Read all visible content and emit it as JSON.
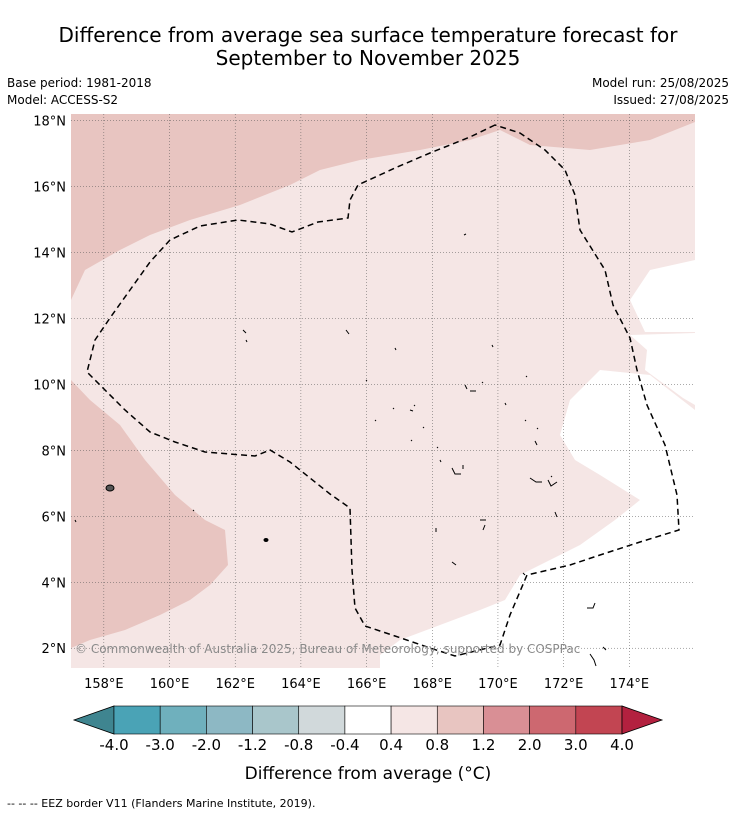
{
  "title_line1": "Difference from average sea surface temperature forecast for",
  "title_line2": "September to November 2025",
  "meta": {
    "base_period": "Base period: 1981-2018",
    "model": "Model: ACCESS-S2",
    "model_run": "Model run: 25/08/2025",
    "issued": "Issued: 27/08/2025"
  },
  "map": {
    "lon_range": [
      157,
      176
    ],
    "lat_range": [
      1.4,
      18.2
    ],
    "lat_ticks": [
      "2°N",
      "4°N",
      "6°N",
      "8°N",
      "10°N",
      "12°N",
      "14°N",
      "16°N",
      "18°N"
    ],
    "lon_ticks": [
      "158°E",
      "160°E",
      "162°E",
      "164°E",
      "166°E",
      "168°E",
      "170°E",
      "172°E",
      "174°E"
    ],
    "copyright": "© Commonwealth of Australia 2025, Bureau of Meteorology, supported by COSPPac"
  },
  "colorbar": {
    "labels": [
      "-4.0",
      "-3.0",
      "-2.0",
      "-1.2",
      "-0.8",
      "-0.4",
      "0.4",
      "0.8",
      "1.2",
      "2.0",
      "3.0",
      "4.0"
    ],
    "colors": [
      "#3f8590",
      "#4aa3b6",
      "#6fb0bd",
      "#8db8c4",
      "#a9c6cb",
      "#d1d9db",
      "#ffffff",
      "#f5e6e5",
      "#e8c5c1",
      "#d98f95",
      "#cd6870",
      "#c24552",
      "#b3213f"
    ],
    "title": "Difference from average (°C)"
  },
  "footer": "--  --  -- EEZ border V11 (Flanders Marine Institute, 2019)."
}
